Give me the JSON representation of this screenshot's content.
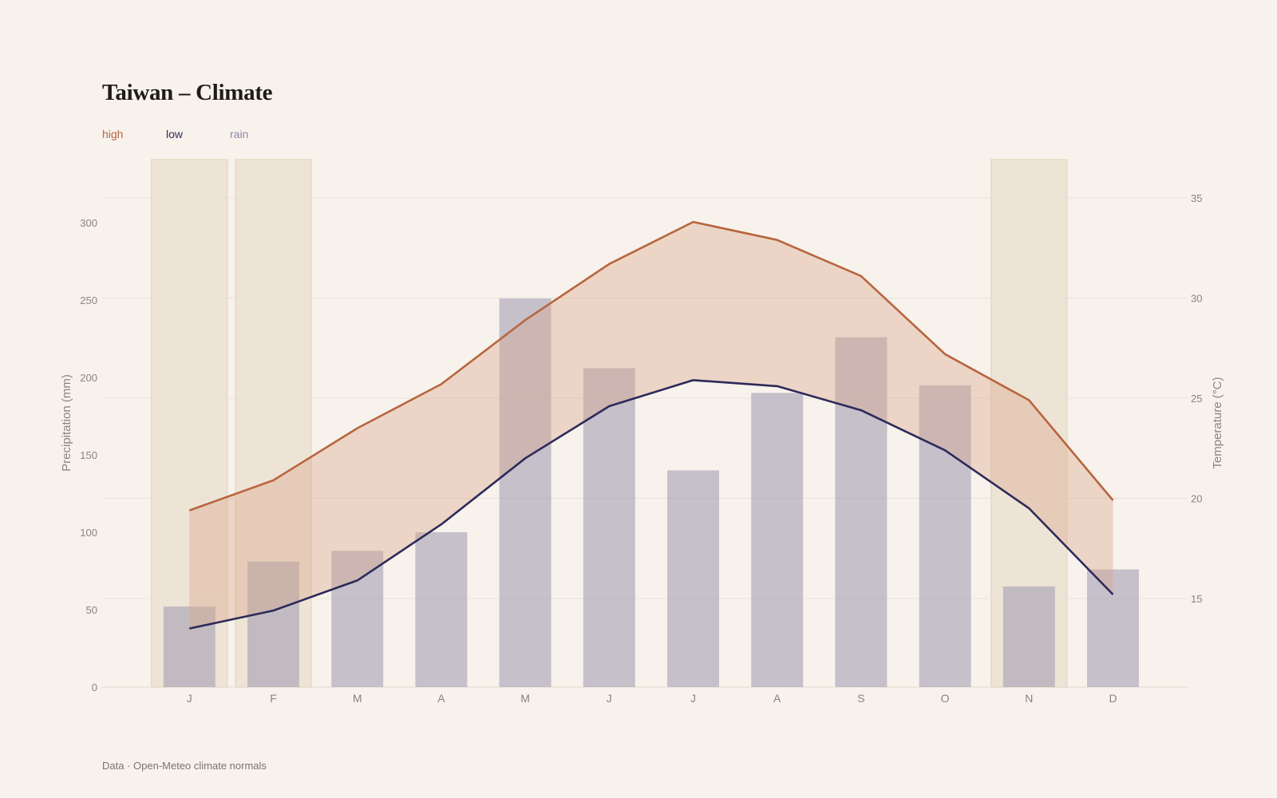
{
  "title": "Taiwan – Climate",
  "legend": {
    "high": "high",
    "low": "low",
    "rain": "rain"
  },
  "footer": "Data · Open-Meteo climate normals",
  "colors": {
    "high": "#b8653f",
    "low": "#2d2a5a",
    "rain_bar": "#a6a2b5",
    "band_fill": "#d9a58a",
    "highlight": "#e6d9c5",
    "grid": "#e8e1d8",
    "background": "#f7f2ec"
  },
  "chart_data": {
    "type": "bar+line",
    "categories": [
      "J",
      "F",
      "M",
      "A",
      "M",
      "J",
      "J",
      "A",
      "S",
      "O",
      "N",
      "D"
    ],
    "y_left_label": "Precipitation (mm)",
    "y_right_label": "Temperature (°C)",
    "y_left_ticks": [
      0,
      50,
      100,
      150,
      200,
      250,
      300
    ],
    "y_right_ticks": [
      15,
      20,
      25,
      30,
      35
    ],
    "y_left_lim": [
      0,
      315
    ],
    "y_right_lim": [
      10.4,
      36.9
    ],
    "grid": true,
    "highlighted_months_index": [
      0,
      1,
      10
    ],
    "series": [
      {
        "name": "rain",
        "kind": "bar",
        "values": [
          52,
          81,
          88,
          100,
          251,
          206,
          140,
          190,
          226,
          195,
          65,
          76
        ]
      },
      {
        "name": "high",
        "kind": "line",
        "values": [
          19.4,
          20.9,
          23.5,
          25.7,
          28.9,
          31.7,
          33.8,
          32.9,
          31.1,
          27.2,
          24.9,
          19.9
        ]
      },
      {
        "name": "low",
        "kind": "line",
        "values": [
          13.5,
          14.4,
          15.9,
          18.7,
          22.0,
          24.6,
          25.9,
          25.6,
          24.4,
          22.4,
          19.5,
          15.2
        ]
      }
    ]
  }
}
